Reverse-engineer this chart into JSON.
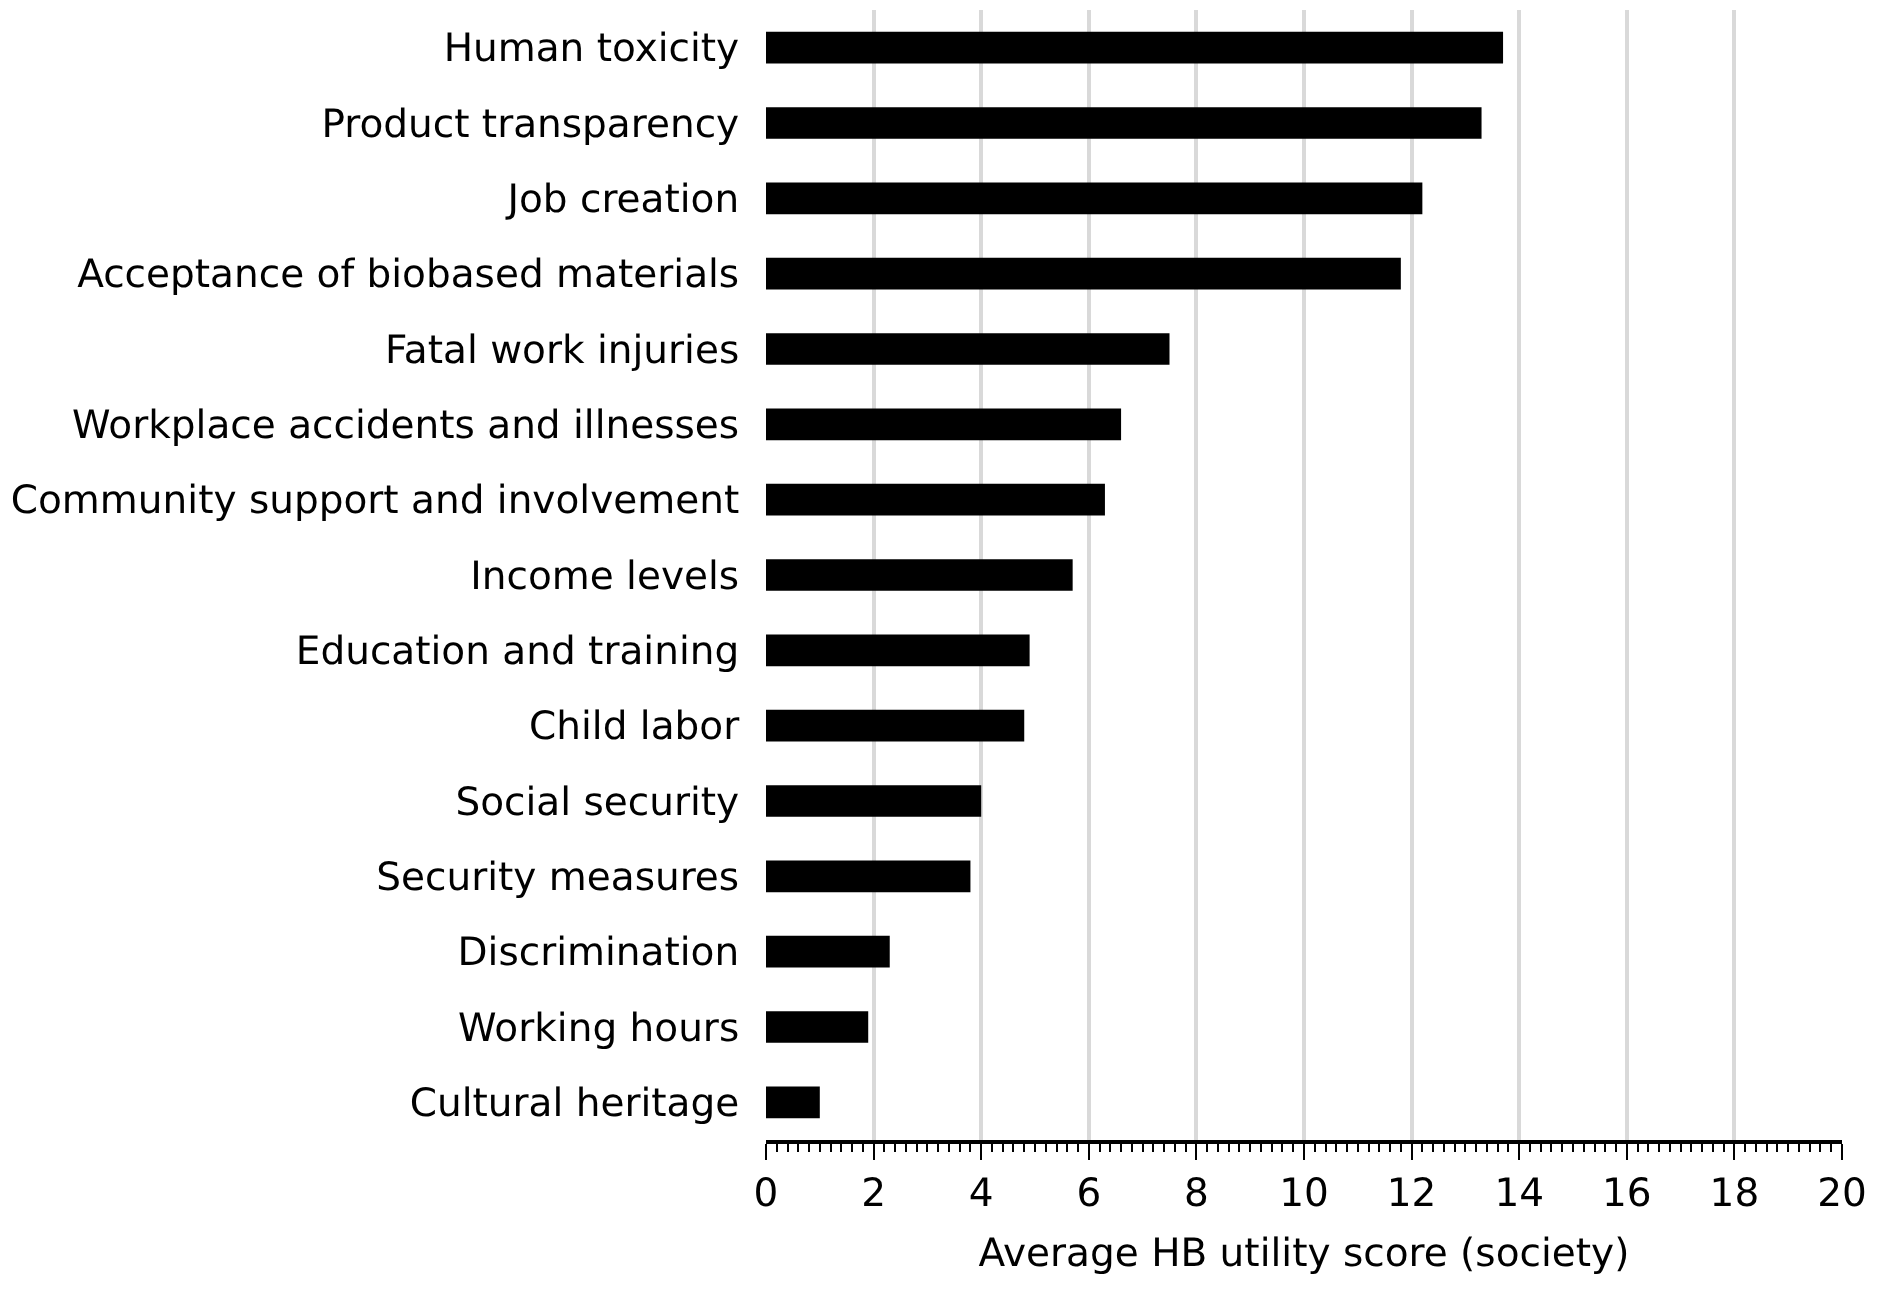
{
  "chart_data": {
    "type": "bar",
    "orientation": "horizontal",
    "xlabel": "Average HB utility score (society)",
    "categories": [
      "Human toxicity",
      "Product transparency",
      "Job creation",
      "Acceptance of biobased materials",
      "Fatal work injuries",
      "Workplace accidents and illnesses",
      "Community support and involvement",
      "Income levels",
      "Education and training",
      "Child labor",
      "Social security",
      "Security measures",
      "Discrimination",
      "Working hours",
      "Cultural heritage"
    ],
    "values": [
      13.7,
      13.3,
      12.2,
      11.8,
      7.5,
      6.6,
      6.3,
      5.7,
      4.9,
      4.8,
      4.0,
      3.8,
      2.3,
      1.9,
      1.0
    ],
    "color": "#000000",
    "xlim": [
      0,
      20
    ],
    "xticks": [
      0,
      2,
      4,
      6,
      8,
      10,
      12,
      14,
      16,
      18,
      20
    ],
    "grid": "x"
  }
}
